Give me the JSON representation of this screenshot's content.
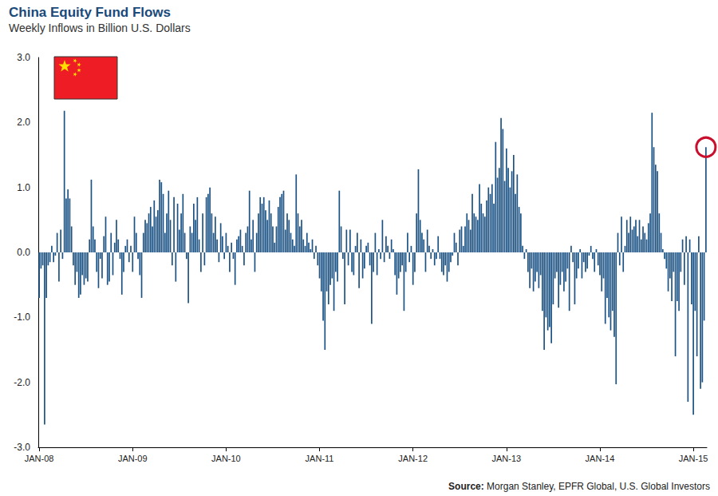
{
  "chart_data": {
    "type": "bar",
    "title": "China Equity Fund Flows",
    "subtitle": "Weekly Inflows in Billion U.S. Dollars",
    "source": "Source: Morgan Stanley, EPFR Global, U.S. Global Investors",
    "color": "#1b5283",
    "grid": false,
    "ylim": [
      -3,
      3
    ],
    "yticks": [
      {
        "value": -3,
        "label": "-3.0"
      },
      {
        "value": -2,
        "label": "-2.0"
      },
      {
        "value": -1,
        "label": "-1.0"
      },
      {
        "value": 0,
        "label": "0.0"
      },
      {
        "value": 1,
        "label": "1.0"
      },
      {
        "value": 2,
        "label": "2.0"
      },
      {
        "value": 3,
        "label": "3.0"
      }
    ],
    "categories": [
      "JAN-08",
      null,
      null,
      null,
      null,
      null,
      null,
      null,
      null,
      null,
      null,
      null,
      null,
      null,
      null,
      null,
      null,
      null,
      null,
      null,
      null,
      null,
      null,
      null,
      null,
      null,
      null,
      null,
      null,
      null,
      null,
      null,
      null,
      null,
      null,
      null,
      null,
      null,
      null,
      null,
      null,
      null,
      null,
      null,
      null,
      null,
      null,
      null,
      null,
      null,
      null,
      null,
      "JAN-09",
      null,
      null,
      null,
      null,
      null,
      null,
      null,
      null,
      null,
      null,
      null,
      null,
      null,
      null,
      null,
      null,
      null,
      null,
      null,
      null,
      null,
      null,
      null,
      null,
      null,
      null,
      null,
      null,
      null,
      null,
      null,
      null,
      null,
      null,
      null,
      null,
      null,
      null,
      null,
      null,
      null,
      null,
      null,
      null,
      null,
      null,
      null,
      null,
      null,
      null,
      null,
      "JAN-10",
      null,
      null,
      null,
      null,
      null,
      null,
      null,
      null,
      null,
      null,
      null,
      null,
      null,
      null,
      null,
      null,
      null,
      null,
      null,
      null,
      null,
      null,
      null,
      null,
      null,
      null,
      null,
      null,
      null,
      null,
      null,
      null,
      null,
      null,
      null,
      null,
      null,
      null,
      null,
      null,
      null,
      null,
      null,
      null,
      null,
      null,
      null,
      null,
      null,
      null,
      null,
      "JAN-11",
      null,
      null,
      null,
      null,
      null,
      null,
      null,
      null,
      null,
      null,
      null,
      null,
      null,
      null,
      null,
      null,
      null,
      null,
      null,
      null,
      null,
      null,
      null,
      null,
      null,
      null,
      null,
      null,
      null,
      null,
      null,
      null,
      null,
      null,
      null,
      null,
      null,
      null,
      null,
      null,
      null,
      null,
      null,
      null,
      null,
      null,
      null,
      null,
      null,
      null,
      null,
      "JAN-12",
      null,
      null,
      null,
      null,
      null,
      null,
      null,
      null,
      null,
      null,
      null,
      null,
      null,
      null,
      null,
      null,
      null,
      null,
      null,
      null,
      null,
      null,
      null,
      null,
      null,
      null,
      null,
      null,
      null,
      null,
      null,
      null,
      null,
      null,
      null,
      null,
      null,
      null,
      null,
      null,
      null,
      null,
      null,
      null,
      null,
      null,
      null,
      null,
      null,
      null,
      null,
      "JAN-13",
      null,
      null,
      null,
      null,
      null,
      null,
      null,
      null,
      null,
      null,
      null,
      null,
      null,
      null,
      null,
      null,
      null,
      null,
      null,
      null,
      null,
      null,
      null,
      null,
      null,
      null,
      null,
      null,
      null,
      null,
      null,
      null,
      null,
      null,
      null,
      null,
      null,
      null,
      null,
      null,
      null,
      null,
      null,
      null,
      null,
      null,
      null,
      null,
      null,
      null,
      null,
      "JAN-14",
      null,
      null,
      null,
      null,
      null,
      null,
      null,
      null,
      null,
      null,
      null,
      null,
      null,
      null,
      null,
      null,
      null,
      null,
      null,
      null,
      null,
      null,
      null,
      null,
      null,
      null,
      null,
      null,
      null,
      null,
      null,
      null,
      null,
      null,
      null,
      null,
      null,
      null,
      null,
      null,
      null,
      null,
      null,
      null,
      null,
      null,
      null,
      null,
      null,
      null,
      null,
      "JAN-15",
      null,
      null,
      null,
      null,
      null,
      null,
      null
    ],
    "values": [
      -0.7,
      -0.25,
      -0.2,
      -2.65,
      -0.7,
      -0.2,
      -0.15,
      0.1,
      -0.15,
      -0.05,
      0.3,
      -0.45,
      0.35,
      -0.1,
      2.18,
      0.83,
      0.97,
      0.83,
      0.4,
      -0.2,
      -0.5,
      -0.3,
      -0.7,
      -0.65,
      -0.35,
      -0.5,
      -0.4,
      -0.45,
      0.2,
      1.12,
      0.4,
      0.2,
      -0.3,
      -0.55,
      -0.1,
      -0.4,
      0.25,
      0.55,
      -0.5,
      -0.45,
      0.3,
      -0.35,
      0.15,
      0.5,
      0.2,
      -0.1,
      -0.65,
      -0.3,
      0.1,
      0.2,
      -0.15,
      0.1,
      -0.3,
      0.55,
      0.3,
      -0.1,
      -0.35,
      -0.7,
      0.3,
      0.5,
      0.45,
      0.6,
      0.7,
      0.4,
      0.8,
      0.55,
      0.65,
      1.12,
      1.08,
      0.9,
      0.3,
      0.6,
      0.95,
      0.5,
      -0.2,
      0.85,
      -0.45,
      0.75,
      0.35,
      0.6,
      0.9,
      0.3,
      -0.1,
      -0.78,
      0.4,
      0.3,
      0.75,
      0.5,
      0.85,
      0.2,
      -0.3,
      0.6,
      -0.2,
      0.85,
      0.9,
      1.0,
      0.6,
      0.3,
      0.55,
      0.2,
      -0.15,
      0.45,
      0.25,
      -0.1,
      0.3,
      0.1,
      -0.3,
      0.15,
      -0.1,
      -0.5,
      0.2,
      0.25,
      0.35,
      0.1,
      -0.2,
      0.3,
      0.4,
      0.95,
      0.2,
      0.5,
      -0.3,
      0.3,
      0.6,
      0.85,
      0.75,
      0.85,
      0.65,
      0.5,
      0.8,
      0.6,
      0.4,
      0.15,
      0.4,
      0.7,
      0.85,
      0.9,
      0.95,
      0.35,
      0.6,
      0.5,
      0.3,
      0.2,
      0.1,
      1.2,
      0.6,
      0.4,
      0.5,
      0.2,
      0.1,
      0.3,
      0.15,
      0.05,
      0.2,
      -0.1,
      0.1,
      -0.2,
      -0.4,
      -0.6,
      -1.05,
      -1.5,
      -0.6,
      -0.8,
      -0.5,
      -0.4,
      -0.9,
      -0.3,
      -0.45,
      0.95,
      0.4,
      -0.1,
      -0.8,
      0.35,
      -0.2,
      0.35,
      -0.3,
      -0.35,
      0.1,
      0.3,
      -0.55,
      0.2,
      -0.4,
      -0.25,
      0.1,
      0.15,
      -0.2,
      -1.1,
      -0.3,
      0.3,
      -0.35,
      0.05,
      -0.1,
      0.5,
      -0.15,
      0.25,
      0.1,
      -0.1,
      0.2,
      0.05,
      -0.35,
      -0.65,
      -0.4,
      -0.3,
      -0.2,
      -0.9,
      -0.3,
      0.3,
      -0.15,
      0.1,
      -0.5,
      -0.3,
      0.6,
      1.28,
      0.5,
      0.3,
      0.2,
      -0.3,
      0.35,
      0.1,
      -0.1,
      0.05,
      -0.2,
      -0.1,
      0.25,
      -0.1,
      -0.3,
      -0.35,
      -0.2,
      -0.45,
      -0.3,
      -0.15,
      -0.05,
      0.3,
      0.15,
      -0.2,
      0.35,
      0.4,
      0.1,
      0.4,
      0.6,
      0.5,
      0.35,
      0.9,
      0.6,
      0.55,
      0.5,
      1.05,
      0.75,
      0.6,
      0.55,
      0.8,
      1.0,
      0.9,
      1.05,
      0.75,
      1.7,
      1.15,
      1.3,
      2.07,
      1.9,
      1.1,
      1.6,
      1.3,
      1.0,
      1.25,
      1.5,
      0.9,
      1.2,
      0.7,
      0.6,
      0.1,
      -0.1,
      0.05,
      -0.3,
      -0.55,
      -0.25,
      -0.6,
      -0.45,
      -0.3,
      -0.55,
      -0.35,
      -0.9,
      -1.5,
      -1.0,
      -1.2,
      -1.15,
      -1.4,
      -0.8,
      -0.4,
      -0.3,
      -0.85,
      -0.5,
      -0.3,
      -0.6,
      -0.45,
      -0.25,
      -0.9,
      0.1,
      -0.15,
      -0.8,
      -0.4,
      -0.25,
      0.05,
      -0.4,
      -0.15,
      -0.3,
      -0.25,
      -0.05,
      0.1,
      -0.1,
      -0.3,
      0.05,
      -0.2,
      -0.35,
      -0.6,
      -0.4,
      -1.1,
      -0.7,
      -1.0,
      -1.2,
      -0.9,
      -1.3,
      -2.03,
      0.3,
      -0.2,
      0.55,
      -0.3,
      0.1,
      0.5,
      0.3,
      0.55,
      0.35,
      0.4,
      0.5,
      0.25,
      0.5,
      0.2,
      0.4,
      0.3,
      0.2,
      0.45,
      0.6,
      2.15,
      1.62,
      1.35,
      1.25,
      0.6,
      0.3,
      0.05,
      -0.1,
      -0.25,
      -0.6,
      -0.4,
      -0.75,
      -0.3,
      -1.6,
      -0.75,
      -0.9,
      -0.3,
      0.2,
      -0.5,
      0.25,
      -2.3,
      0.2,
      -0.8,
      -2.5,
      -0.9,
      -1.6,
      0.25,
      -2.1,
      -2.0,
      -1.05,
      1.62
    ]
  }
}
